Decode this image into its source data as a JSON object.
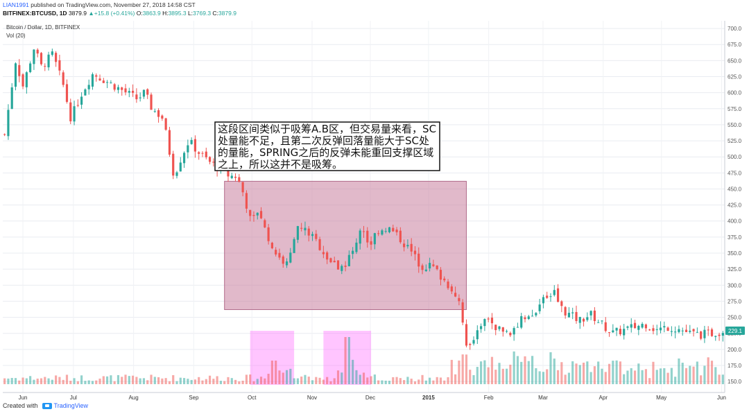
{
  "header": {
    "user": "LIAN1991",
    "published": "published on TradingView.com, November 27, 2018 14:58 CST",
    "symbol": "BITFINEX:BTCUSD, 1D",
    "last": "3879.9",
    "change": "+15.8 (+0.41%)",
    "o_label": "O:",
    "o": "3863.9",
    "h_label": "H:",
    "h": "3895.3",
    "l_label": "L:",
    "l": "3769.3",
    "c_label": "C:",
    "c": "3879.9"
  },
  "legend": {
    "series": "Bitcoin / Dollar, 1D, BITFINEX",
    "volume": "Vol (20)"
  },
  "annotation": {
    "text": "这段区间类似于吸筹A.B区，但交易量来看，SC处量能不足，且第二次反弹回落量能大于SC处的量能，SPRING之后的反弹未能重回支撑区域之上，所以这并不是吸筹。"
  },
  "footer": {
    "created_with": "Created with",
    "brand": "TradingView"
  },
  "colors": {
    "up": "#26a69a",
    "down": "#ef5350",
    "zone": "#c9809f",
    "volume_box": "#ff66ff",
    "price_tag": "#26a69a"
  },
  "chart_data": {
    "type": "candlestick",
    "x_tick_labels": [
      "Jun",
      "Jul",
      "Aug",
      "Sep",
      "Oct",
      "Nov",
      "Dec",
      "2015",
      "Feb",
      "Mar",
      "Apr",
      "May",
      "Jun"
    ],
    "y_ticks": [
      150,
      175,
      200,
      225,
      250,
      275,
      300,
      325,
      350,
      375,
      400,
      425,
      450,
      475,
      500,
      525,
      550,
      575,
      600,
      625,
      650,
      675,
      700
    ],
    "y_tick_labels": [
      "150.0",
      "175.0",
      "200.0",
      "225.0",
      "250.0",
      "275.0",
      "300.0",
      "325.0",
      "350.0",
      "375.0",
      "400.0",
      "425.0",
      "450.0",
      "475.0",
      "500.0",
      "525.0",
      "550.0",
      "575.0",
      "600.0",
      "625.0",
      "650.0",
      "675.0",
      "700.0"
    ],
    "last_price_label": "229.1",
    "last_price": 229.1,
    "ylim": [
      135,
      712
    ],
    "close_path": [
      [
        0,
        535
      ],
      [
        3,
        650
      ],
      [
        5,
        610
      ],
      [
        8,
        670
      ],
      [
        10,
        640
      ],
      [
        13,
        660
      ],
      [
        16,
        610
      ],
      [
        18,
        560
      ],
      [
        21,
        600
      ],
      [
        24,
        630
      ],
      [
        27,
        620
      ],
      [
        30,
        610
      ],
      [
        33,
        600
      ],
      [
        36,
        590
      ],
      [
        38,
        600
      ],
      [
        40,
        575
      ],
      [
        43,
        560
      ],
      [
        46,
        470
      ],
      [
        48,
        500
      ],
      [
        50,
        525
      ],
      [
        53,
        505
      ],
      [
        56,
        490
      ],
      [
        59,
        480
      ],
      [
        61,
        470
      ],
      [
        63,
        470
      ],
      [
        65,
        440
      ],
      [
        67,
        395
      ],
      [
        69,
        420
      ],
      [
        71,
        380
      ],
      [
        73,
        355
      ],
      [
        75,
        340
      ],
      [
        77,
        330
      ],
      [
        79,
        390
      ],
      [
        82,
        385
      ],
      [
        85,
        365
      ],
      [
        88,
        340
      ],
      [
        91,
        325
      ],
      [
        94,
        345
      ],
      [
        97,
        395
      ],
      [
        99,
        360
      ],
      [
        101,
        385
      ],
      [
        104,
        390
      ],
      [
        107,
        375
      ],
      [
        110,
        355
      ],
      [
        113,
        330
      ],
      [
        116,
        330
      ],
      [
        119,
        310
      ],
      [
        122,
        290
      ],
      [
        124,
        270
      ],
      [
        125,
        205
      ],
      [
        126,
        200
      ],
      [
        128,
        225
      ],
      [
        131,
        250
      ],
      [
        134,
        230
      ],
      [
        137,
        225
      ],
      [
        140,
        245
      ],
      [
        143,
        255
      ],
      [
        146,
        275
      ],
      [
        149,
        290
      ],
      [
        151,
        265
      ],
      [
        153,
        255
      ],
      [
        156,
        245
      ],
      [
        159,
        255
      ],
      [
        162,
        240
      ],
      [
        165,
        225
      ],
      [
        168,
        230
      ],
      [
        171,
        235
      ],
      [
        174,
        240
      ],
      [
        177,
        230
      ],
      [
        180,
        235
      ],
      [
        183,
        232
      ],
      [
        186,
        225
      ],
      [
        189,
        223
      ],
      [
        192,
        225
      ],
      [
        195,
        229
      ]
    ],
    "zone": {
      "x_start": 60,
      "x_end": 126,
      "y_low": 262,
      "y_high": 462
    },
    "volume_boxes": [
      {
        "x_start": 67,
        "x_end": 79
      },
      {
        "x_start": 87,
        "x_end": 100
      }
    ]
  }
}
